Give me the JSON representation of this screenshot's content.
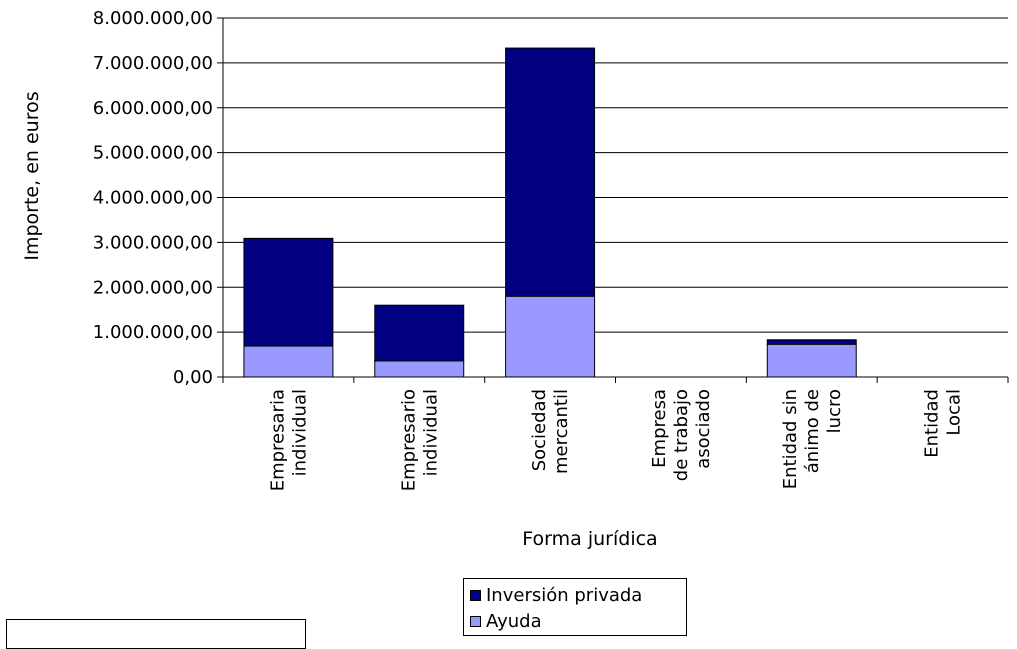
{
  "chart_data": {
    "type": "bar",
    "stacked": true,
    "xlabel": "Forma jurídica",
    "ylabel": "Importe, en euros",
    "ylim": [
      0,
      8000000
    ],
    "yticks": [
      "0,00",
      "1.000.000,00",
      "2.000.000,00",
      "3.000.000,00",
      "4.000.000,00",
      "5.000.000,00",
      "6.000.000,00",
      "7.000.000,00",
      "8.000.000,00"
    ],
    "grid": true,
    "legend_position": "bottom",
    "categories": [
      [
        "Empresaria",
        "individual"
      ],
      [
        "Empresario",
        "individual"
      ],
      [
        "Sociedad",
        "mercantil"
      ],
      [
        "Empresa",
        "de trabajo",
        "asociado"
      ],
      [
        "Entidad sin",
        "ánimo de",
        "lucro"
      ],
      [
        "Entidad",
        "Local"
      ]
    ],
    "series": [
      {
        "name": "Ayuda",
        "color": "#9999ff",
        "values": [
          690000,
          360000,
          1800000,
          0,
          730000,
          0
        ]
      },
      {
        "name": "Inversión privada",
        "color": "#000080",
        "values": [
          2400000,
          1240000,
          5530000,
          0,
          100000,
          0
        ]
      }
    ]
  },
  "legend": {
    "items": [
      {
        "label": "Inversión privada",
        "color": "#000080"
      },
      {
        "label": "Ayuda",
        "color": "#9999ff"
      }
    ]
  }
}
